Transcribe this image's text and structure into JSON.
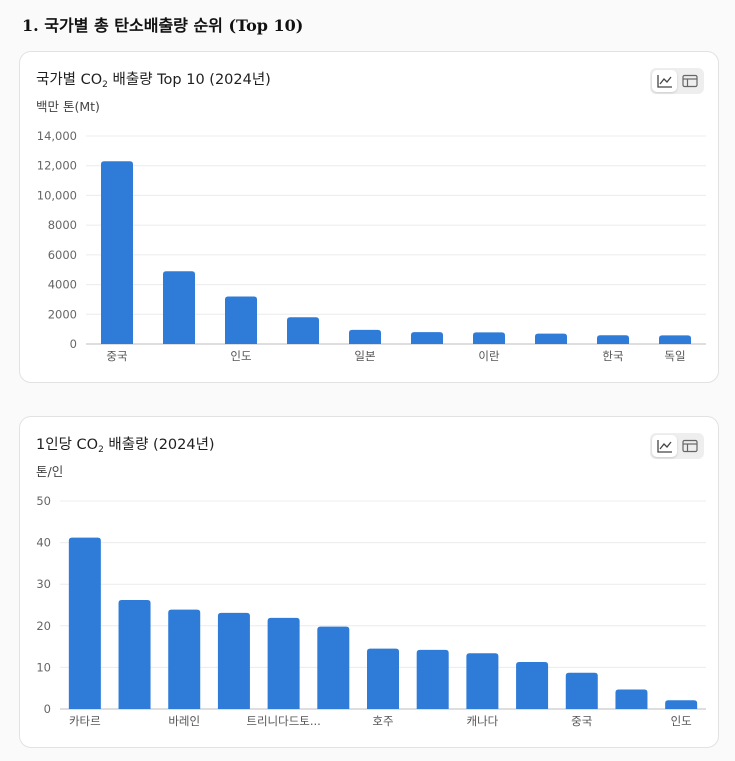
{
  "section_title": "1. 국가별 총 탄소배출량 순위 (Top 10)",
  "chart_data": [
    {
      "type": "bar",
      "title_main": "국가별 CO",
      "title_sub": "2",
      "title_rest": " 배출량 Top 10 (2024년)",
      "unit_label": "백만 톤(Mt)",
      "color": "#2e7bd8",
      "ylim": [
        0,
        14000
      ],
      "yticks": [
        "0",
        "2000",
        "4000",
        "6000",
        "8000",
        "10,000",
        "12,000",
        "14,000"
      ],
      "ytick_values": [
        0,
        2000,
        4000,
        6000,
        8000,
        10000,
        12000,
        14000
      ],
      "categories": [
        "중국",
        "",
        "인도",
        "",
        "일본",
        "",
        "이란",
        "",
        "한국",
        "독일"
      ],
      "values": [
        12300,
        4900,
        3200,
        1800,
        950,
        800,
        780,
        700,
        590,
        580
      ]
    },
    {
      "type": "bar",
      "title_main": "1인당 CO",
      "title_sub": "2",
      "title_rest": " 배출량 (2024년)",
      "unit_label": "톤/인",
      "color": "#2e7bd8",
      "ylim": [
        0,
        50
      ],
      "yticks": [
        "0",
        "10",
        "20",
        "30",
        "40",
        "50"
      ],
      "ytick_values": [
        0,
        10,
        20,
        30,
        40,
        50
      ],
      "categories": [
        "카타르",
        "",
        "바레인",
        "",
        "트리니다드토...",
        "",
        "호주",
        "",
        "캐나다",
        "",
        "중국",
        "",
        "인도"
      ],
      "values": [
        41.2,
        26.2,
        23.9,
        23.1,
        21.9,
        19.8,
        14.5,
        14.2,
        13.4,
        11.3,
        8.7,
        4.7,
        2.1
      ]
    }
  ],
  "toggle": {
    "line_icon": "line-chart-icon",
    "table_icon": "table-icon"
  }
}
